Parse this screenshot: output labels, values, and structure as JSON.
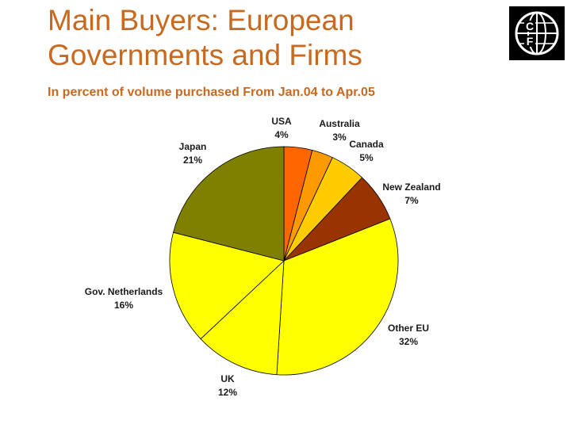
{
  "header": {
    "title_line1": "Main Buyers: European",
    "title_line2": "Governments and Firms",
    "subtitle": "In percent of volume purchased From Jan.04 to Apr.05"
  },
  "logo": {
    "icon": "cf-globe-logo",
    "letters": [
      "C",
      "F"
    ]
  },
  "chart_data": {
    "type": "pie",
    "start_angle": "12 o'clock",
    "direction": "clockwise",
    "slices": [
      {
        "label": "USA",
        "value": 4,
        "value_label": "4%",
        "color": "#ff6600"
      },
      {
        "label": "Australia",
        "value": 3,
        "value_label": "3%",
        "color": "#ff9900"
      },
      {
        "label": "Canada",
        "value": 5,
        "value_label": "5%",
        "color": "#ffcc00"
      },
      {
        "label": "New Zealand",
        "value": 7,
        "value_label": "7%",
        "color": "#993300"
      },
      {
        "label": "Other EU",
        "value": 32,
        "value_label": "32%",
        "color": "#ffff00"
      },
      {
        "label": "UK",
        "value": 12,
        "value_label": "12%",
        "color": "#ffff00"
      },
      {
        "label": "Gov. Netherlands",
        "value": 16,
        "value_label": "16%",
        "color": "#ffff00"
      },
      {
        "label": "Japan",
        "value": 21,
        "value_label": "21%",
        "color": "#808000"
      }
    ]
  }
}
